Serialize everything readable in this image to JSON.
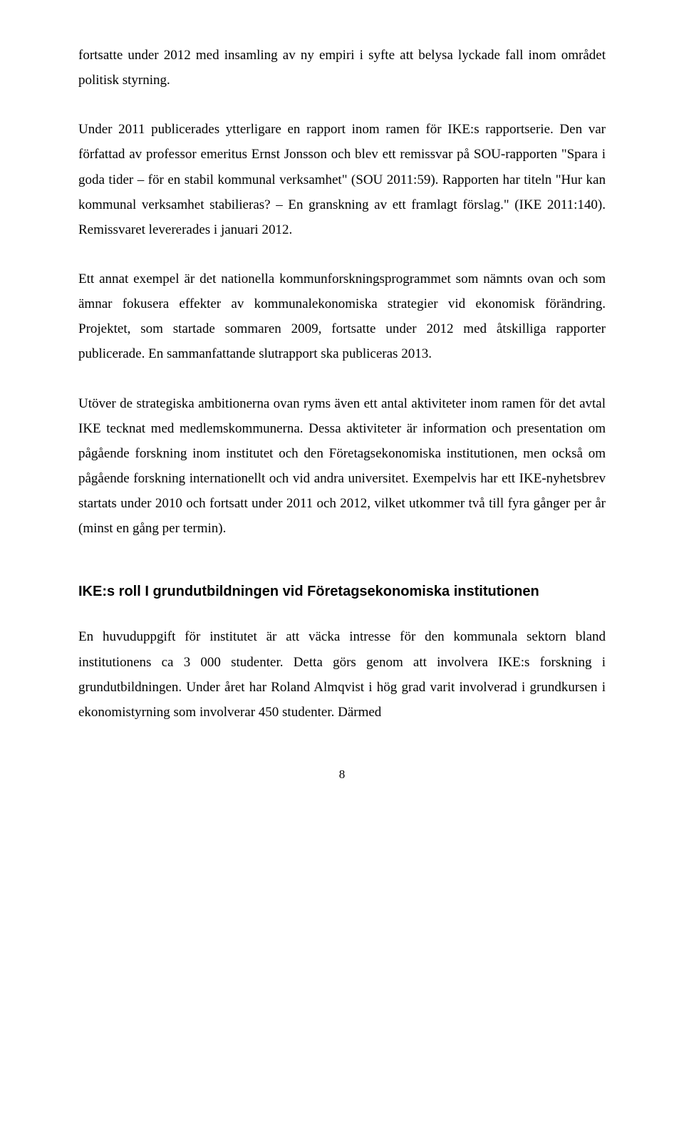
{
  "paragraphs": {
    "p1": "fortsatte under 2012 med insamling av ny empiri i syfte att belysa lyckade fall inom området politisk styrning.",
    "p2": "Under 2011 publicerades ytterligare en rapport inom ramen för IKE:s rapportserie. Den var författad av professor emeritus Ernst Jonsson och blev ett remissvar på SOU-rapporten \"Spara i goda tider – för en stabil kommunal verksamhet\" (SOU 2011:59). Rapporten har titeln \"Hur kan kommunal verksamhet stabilieras? – En granskning av ett framlagt förslag.\" (IKE 2011:140). Remissvaret levererades i januari 2012.",
    "p3": "Ett annat exempel är det nationella kommunforskningsprogrammet som nämnts ovan och som ämnar fokusera effekter av kommunalekonomiska strategier vid ekonomisk förändring. Projektet, som startade sommaren 2009, fortsatte under 2012 med åtskilliga rapporter publicerade. En sammanfattande slutrapport ska publiceras 2013.",
    "p4": "Utöver de strategiska ambitionerna ovan ryms även ett antal aktiviteter inom ramen för det avtal IKE tecknat med medlemskommunerna. Dessa aktiviteter är information och presentation om pågående forskning inom institutet och den Företagsekonomiska institutionen, men också om pågående forskning internationellt och vid andra universitet. Exempelvis har ett IKE-nyhetsbrev startats under 2010 och fortsatt under 2011 och 2012, vilket utkommer två till fyra gånger per år (minst en gång per termin).",
    "p5": "En huvuduppgift för institutet är att väcka intresse för den kommunala sektorn bland institutionens ca 3 000 studenter.  Detta görs genom att involvera IKE:s forskning i grundutbildningen. Under året har Roland Almqvist i hög grad varit involverad i grundkursen i ekonomistyrning som involverar 450 studenter. Därmed"
  },
  "heading": "IKE:s roll I grundutbildningen vid Företagsekonomiska institutionen",
  "pageNumber": "8"
}
